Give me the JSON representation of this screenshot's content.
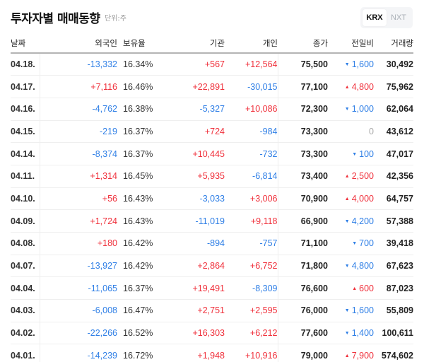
{
  "header": {
    "title": "투자자별 매매동향",
    "unit": "단위:주"
  },
  "market_toggle": {
    "options": [
      {
        "label": "KRX",
        "active": true
      },
      {
        "label": "NXT",
        "active": false
      }
    ]
  },
  "table": {
    "columns": [
      "날짜",
      "외국인",
      "보유율",
      "기관",
      "개인",
      "종가",
      "전일비",
      "거래량"
    ],
    "rows": [
      {
        "date": "04.18.",
        "foreign": "-13,332",
        "hold": "16.34%",
        "inst": "+567",
        "indiv": "+12,564",
        "close": "75,500",
        "change": "1,600",
        "change_dir": "down",
        "volume": "30,492"
      },
      {
        "date": "04.17.",
        "foreign": "+7,116",
        "hold": "16.46%",
        "inst": "+22,891",
        "indiv": "-30,015",
        "close": "77,100",
        "change": "4,800",
        "change_dir": "up",
        "volume": "75,962"
      },
      {
        "date": "04.16.",
        "foreign": "-4,762",
        "hold": "16.38%",
        "inst": "-5,327",
        "indiv": "+10,086",
        "close": "72,300",
        "change": "1,000",
        "change_dir": "down",
        "volume": "62,064"
      },
      {
        "date": "04.15.",
        "foreign": "-219",
        "hold": "16.37%",
        "inst": "+724",
        "indiv": "-984",
        "close": "73,300",
        "change": "0",
        "change_dir": "flat",
        "volume": "43,612"
      },
      {
        "date": "04.14.",
        "foreign": "-8,374",
        "hold": "16.37%",
        "inst": "+10,445",
        "indiv": "-732",
        "close": "73,300",
        "change": "100",
        "change_dir": "down",
        "volume": "47,017"
      },
      {
        "date": "04.11.",
        "foreign": "+1,314",
        "hold": "16.45%",
        "inst": "+5,935",
        "indiv": "-6,814",
        "close": "73,400",
        "change": "2,500",
        "change_dir": "up",
        "volume": "42,356"
      },
      {
        "date": "04.10.",
        "foreign": "+56",
        "hold": "16.43%",
        "inst": "-3,033",
        "indiv": "+3,006",
        "close": "70,900",
        "change": "4,000",
        "change_dir": "up",
        "volume": "64,757"
      },
      {
        "date": "04.09.",
        "foreign": "+1,724",
        "hold": "16.43%",
        "inst": "-11,019",
        "indiv": "+9,118",
        "close": "66,900",
        "change": "4,200",
        "change_dir": "down",
        "volume": "57,388"
      },
      {
        "date": "04.08.",
        "foreign": "+180",
        "hold": "16.42%",
        "inst": "-894",
        "indiv": "-757",
        "close": "71,100",
        "change": "700",
        "change_dir": "down",
        "volume": "39,418"
      },
      {
        "date": "04.07.",
        "foreign": "-13,927",
        "hold": "16.42%",
        "inst": "+2,864",
        "indiv": "+6,752",
        "close": "71,800",
        "change": "4,800",
        "change_dir": "down",
        "volume": "67,623"
      },
      {
        "date": "04.04.",
        "foreign": "-11,065",
        "hold": "16.37%",
        "inst": "+19,491",
        "indiv": "-8,309",
        "close": "76,600",
        "change": "600",
        "change_dir": "up",
        "volume": "87,023"
      },
      {
        "date": "04.03.",
        "foreign": "-6,008",
        "hold": "16.47%",
        "inst": "+2,751",
        "indiv": "+2,595",
        "close": "76,000",
        "change": "1,600",
        "change_dir": "down",
        "volume": "55,809"
      },
      {
        "date": "04.02.",
        "foreign": "-22,266",
        "hold": "16.52%",
        "inst": "+16,303",
        "indiv": "+6,212",
        "close": "77,600",
        "change": "1,400",
        "change_dir": "down",
        "volume": "100,611"
      },
      {
        "date": "04.01.",
        "foreign": "-14,239",
        "hold": "16.72%",
        "inst": "+1,948",
        "indiv": "+10,916",
        "close": "79,000",
        "change": "7,900",
        "change_dir": "up",
        "volume": "574,602"
      }
    ]
  },
  "colors": {
    "up": "#f0313c",
    "down": "#2f7fe6",
    "flat": "#aaaaaa"
  },
  "icons": {
    "up": "▲",
    "down": "▼"
  }
}
